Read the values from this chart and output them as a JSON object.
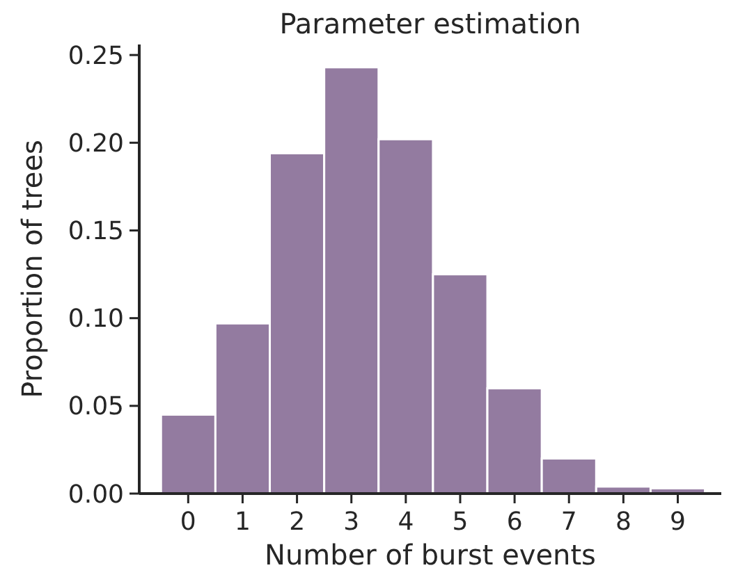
{
  "chart_data": {
    "type": "histogram",
    "title": "Parameter estimation",
    "xlabel": "Number of burst events",
    "ylabel": "Proportion of trees",
    "bins": [
      -0.5,
      0.5,
      1.5,
      2.5,
      3.5,
      4.5,
      5.5,
      6.5,
      7.5,
      8.5,
      9.5
    ],
    "values": [
      0.045,
      0.097,
      0.194,
      0.243,
      0.202,
      0.125,
      0.06,
      0.02,
      0.004,
      0.003
    ],
    "color": "#937ba0",
    "xlim": [
      -0.9,
      9.8
    ],
    "xticks": [
      0,
      1,
      2,
      3,
      4,
      5,
      6,
      7,
      8,
      9
    ],
    "ylim": [
      0,
      0.256
    ],
    "yticks": [
      {
        "value": 0,
        "label": "0.00"
      },
      {
        "value": 0.05,
        "label": "0.05"
      },
      {
        "value": 0.1,
        "label": "0.10"
      },
      {
        "value": 0.15,
        "label": "0.15"
      },
      {
        "value": 0.2,
        "label": "0.20"
      },
      {
        "value": 0.25,
        "label": "0.25"
      }
    ],
    "grid": false
  }
}
